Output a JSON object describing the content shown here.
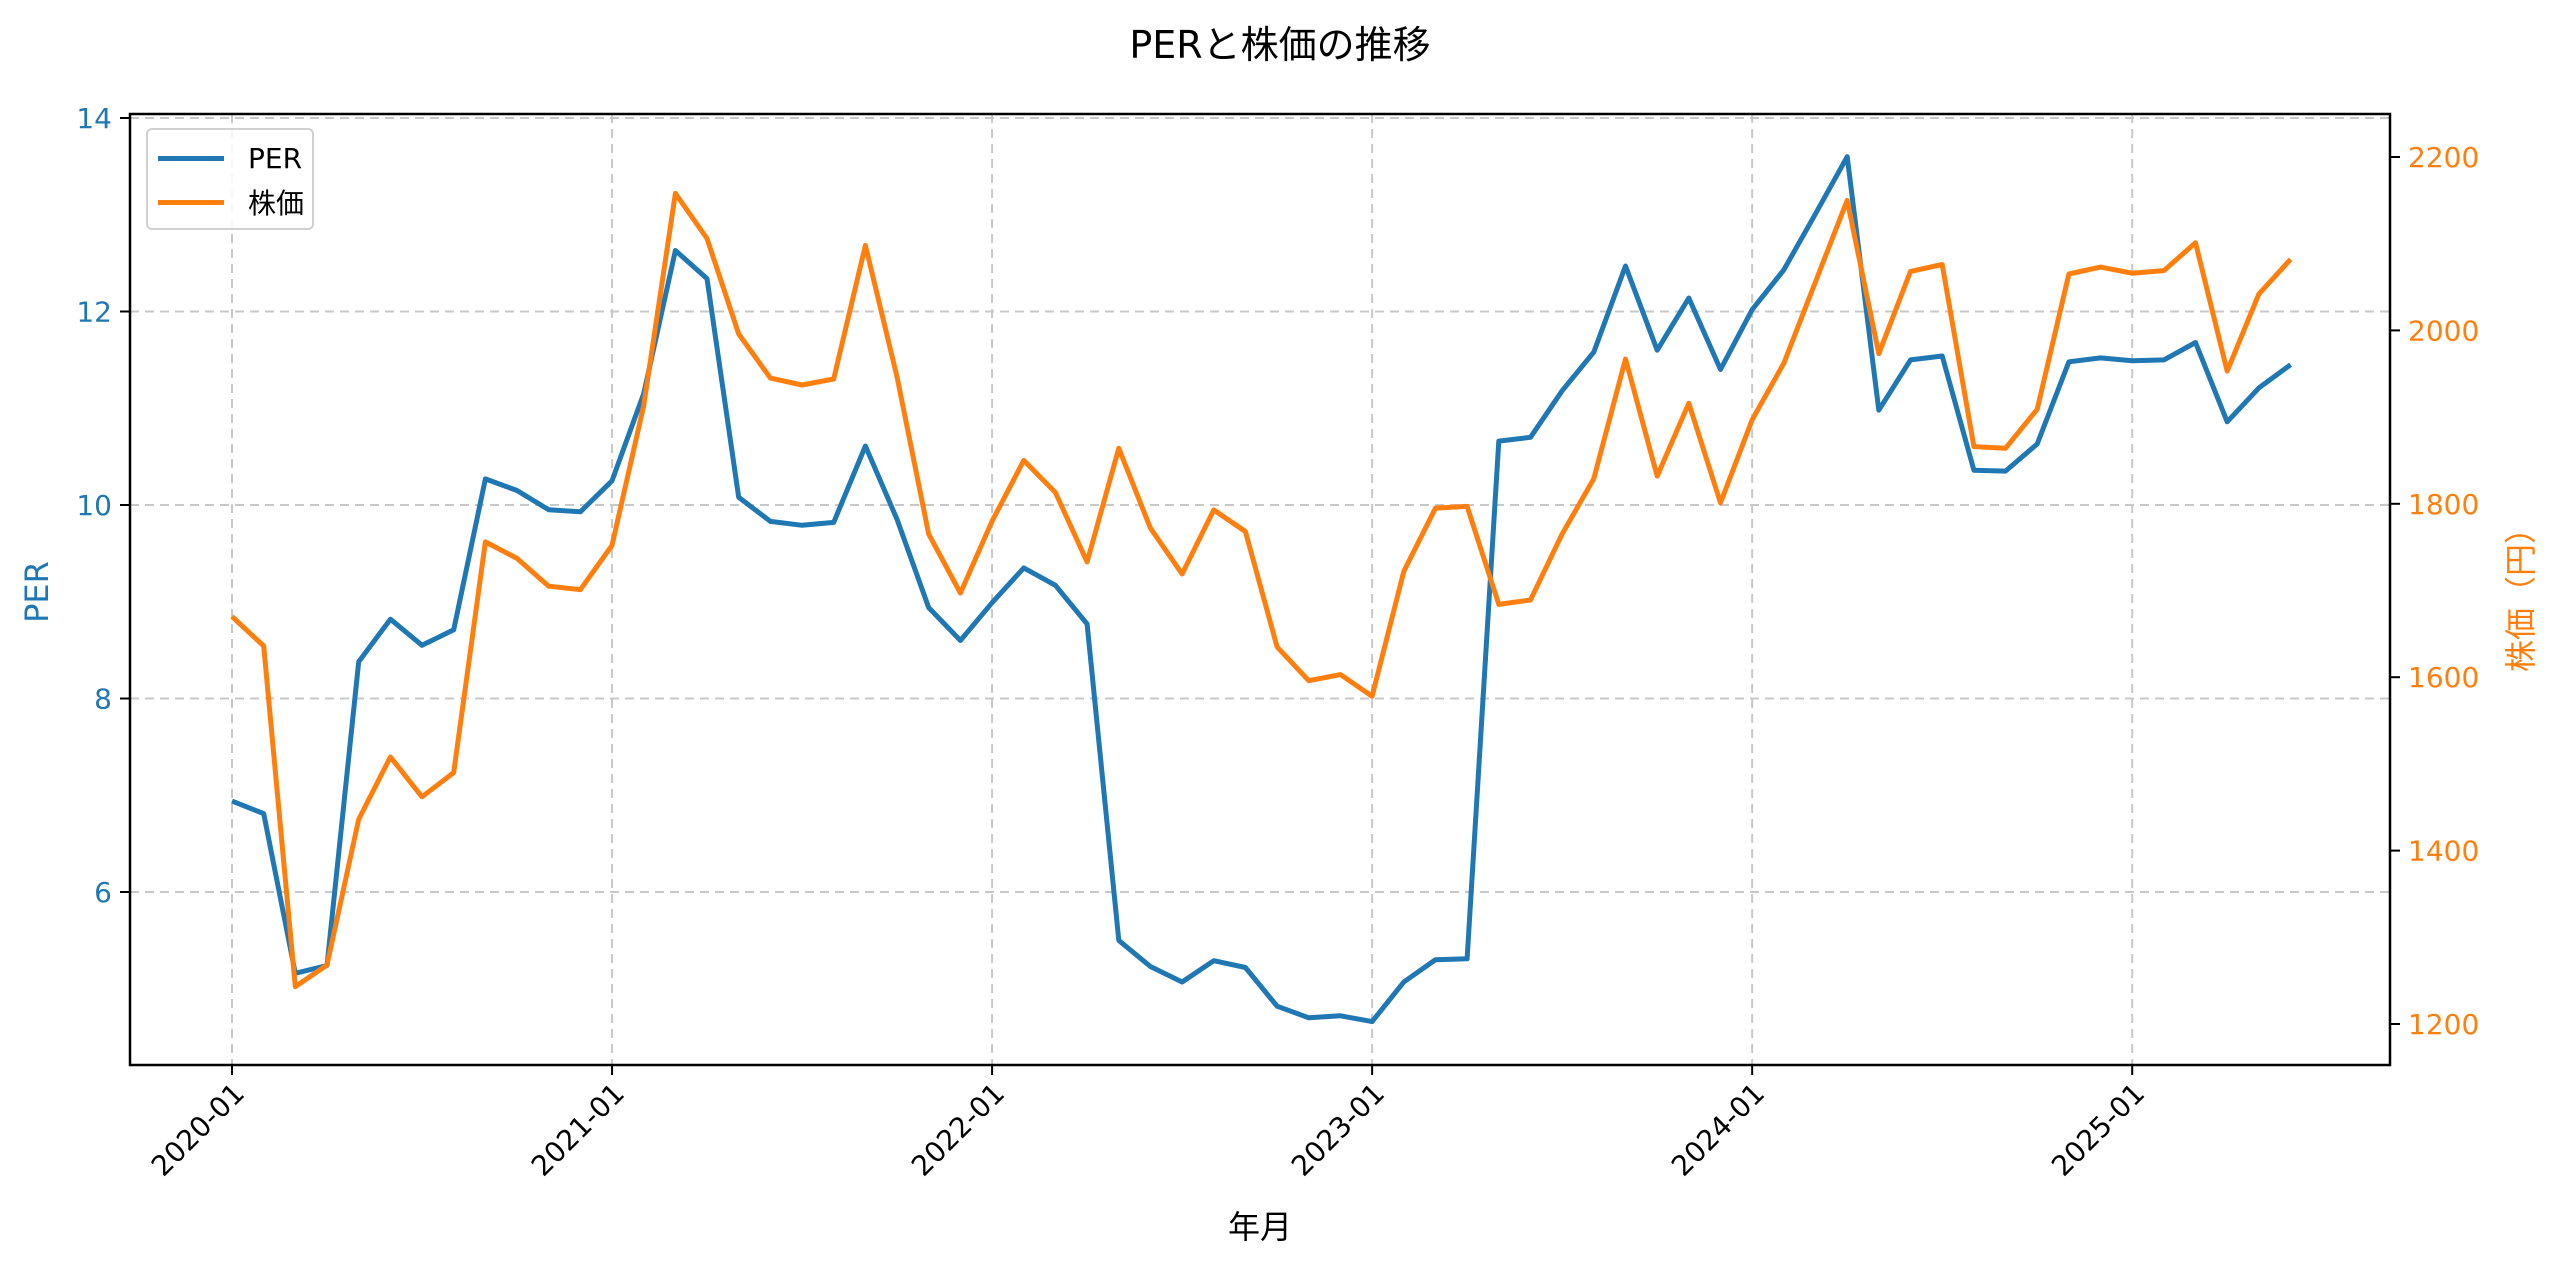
{
  "title": "PERと株価の推移",
  "legend": {
    "items": [
      {
        "label": "PER",
        "color": "#1f77b4"
      },
      {
        "label": "株価",
        "color": "#ff7f0e"
      }
    ]
  },
  "chart_data": {
    "type": "line",
    "title": "PERと株価の推移",
    "xlabel": "年月",
    "ylabel": "PER",
    "ylabel_right": "株価（円）",
    "x_ticks": [
      "2020-01",
      "2021-01",
      "2022-01",
      "2023-01",
      "2024-01",
      "2025-01"
    ],
    "y_ticks_left": [
      6,
      8,
      10,
      12,
      14
    ],
    "y_ticks_right": [
      1200,
      1400,
      1600,
      1800,
      2000,
      2200
    ],
    "ylim_left": [
      4.3,
      14.0
    ],
    "ylim_right": [
      1150,
      2245
    ],
    "grid": true,
    "legend_position": "upper left",
    "x": [
      "2020-01",
      "2020-02",
      "2020-03",
      "2020-04",
      "2020-05",
      "2020-06",
      "2020-07",
      "2020-08",
      "2020-09",
      "2020-10",
      "2020-11",
      "2020-12",
      "2021-01",
      "2021-02",
      "2021-03",
      "2021-04",
      "2021-05",
      "2021-06",
      "2021-07",
      "2021-08",
      "2021-09",
      "2021-10",
      "2021-11",
      "2021-12",
      "2022-01",
      "2022-02",
      "2022-03",
      "2022-04",
      "2022-05",
      "2022-06",
      "2022-07",
      "2022-08",
      "2022-09",
      "2022-10",
      "2022-11",
      "2022-12",
      "2023-01",
      "2023-02",
      "2023-03",
      "2023-04",
      "2023-05",
      "2023-06",
      "2023-07",
      "2023-08",
      "2023-09",
      "2023-10",
      "2023-11",
      "2023-12",
      "2024-01",
      "2024-02",
      "2024-03",
      "2024-04",
      "2024-05",
      "2024-06",
      "2024-07",
      "2024-08",
      "2024-09",
      "2024-10",
      "2024-11",
      "2024-12",
      "2025-01",
      "2025-02",
      "2025-03",
      "2025-04",
      "2025-05",
      "2025-06"
    ],
    "series": [
      {
        "name": "PER",
        "axis": "left",
        "color": "#1f77b4",
        "values": [
          6.94,
          6.81,
          5.16,
          5.24,
          8.38,
          8.82,
          8.55,
          8.71,
          10.27,
          10.15,
          9.95,
          9.93,
          10.25,
          11.15,
          12.63,
          12.34,
          10.08,
          9.83,
          9.79,
          9.82,
          10.61,
          9.85,
          8.94,
          8.6,
          8.99,
          9.35,
          9.17,
          8.77,
          5.5,
          5.23,
          5.07,
          5.29,
          5.22,
          4.82,
          4.7,
          4.72,
          4.66,
          5.07,
          5.3,
          5.31,
          10.66,
          10.7,
          11.18,
          11.58,
          12.47,
          11.6,
          12.14,
          11.4,
          12.02,
          12.43,
          13.01,
          13.6,
          10.98,
          11.5,
          11.54,
          10.36,
          10.35,
          10.63,
          11.48,
          11.52,
          11.49,
          11.5,
          11.68,
          10.86,
          11.21,
          11.45
        ]
      },
      {
        "name": "株価",
        "axis": "right",
        "color": "#ff7f0e",
        "values": [
          1670,
          1636,
          1243,
          1268,
          1436,
          1508,
          1462,
          1490,
          1756,
          1737,
          1705,
          1701,
          1752,
          1913,
          2158,
          2106,
          1996,
          1945,
          1937,
          1944,
          2098,
          1946,
          1765,
          1697,
          1780,
          1850,
          1813,
          1733,
          1864,
          1772,
          1719,
          1793,
          1768,
          1635,
          1596,
          1603,
          1578,
          1722,
          1795,
          1797,
          1684,
          1689,
          1765,
          1829,
          1967,
          1832,
          1916,
          1801,
          1897,
          1962,
          2056,
          2150,
          1973,
          2068,
          2076,
          1866,
          1864,
          1909,
          2065,
          2073,
          2066,
          2069,
          2101,
          1953,
          2042,
          2082
        ]
      }
    ]
  }
}
